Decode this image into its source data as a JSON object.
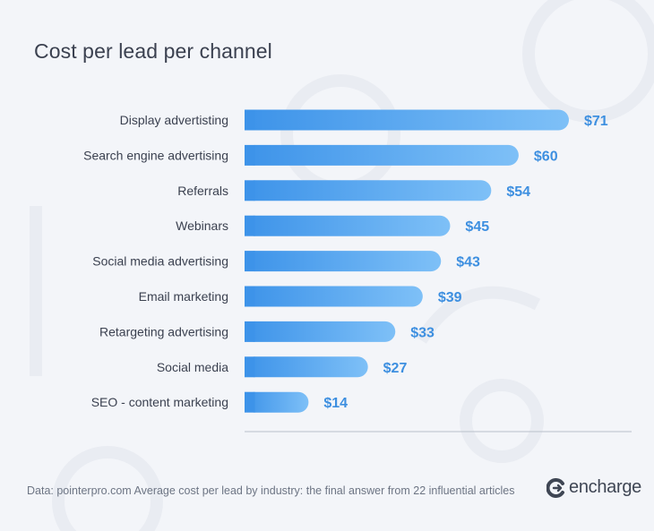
{
  "title": "Cost per lead per channel",
  "source": "Data: pointerpro.com Average cost per lead by industry: the final answer from 22 influential articles",
  "logo": {
    "text": "encharge",
    "icon": "encharge-logo-icon"
  },
  "colors": {
    "background": "#f3f5f9",
    "bar_left": "#3d93e9",
    "bar_right": "#7ec0f7",
    "value_label": "#3d8fe0",
    "category_label": "#3b4150",
    "axis_line": "#b9bfca"
  },
  "chart_data": {
    "type": "bar",
    "orientation": "horizontal",
    "title": "Cost per lead per channel",
    "categories": [
      "Display advertisting",
      "Search engine advertising",
      "Referrals",
      "Webinars",
      "Social media advertising",
      "Email marketing",
      "Retargeting advertising",
      "Social media",
      "SEO - content marketing"
    ],
    "values": [
      71,
      60,
      54,
      45,
      43,
      39,
      33,
      27,
      14
    ],
    "value_labels": [
      "$71",
      "$60",
      "$54",
      "$45",
      "$43",
      "$39",
      "$33",
      "$27",
      "$14"
    ],
    "xlim": [
      0,
      71
    ],
    "grid": false,
    "legend": "none"
  }
}
